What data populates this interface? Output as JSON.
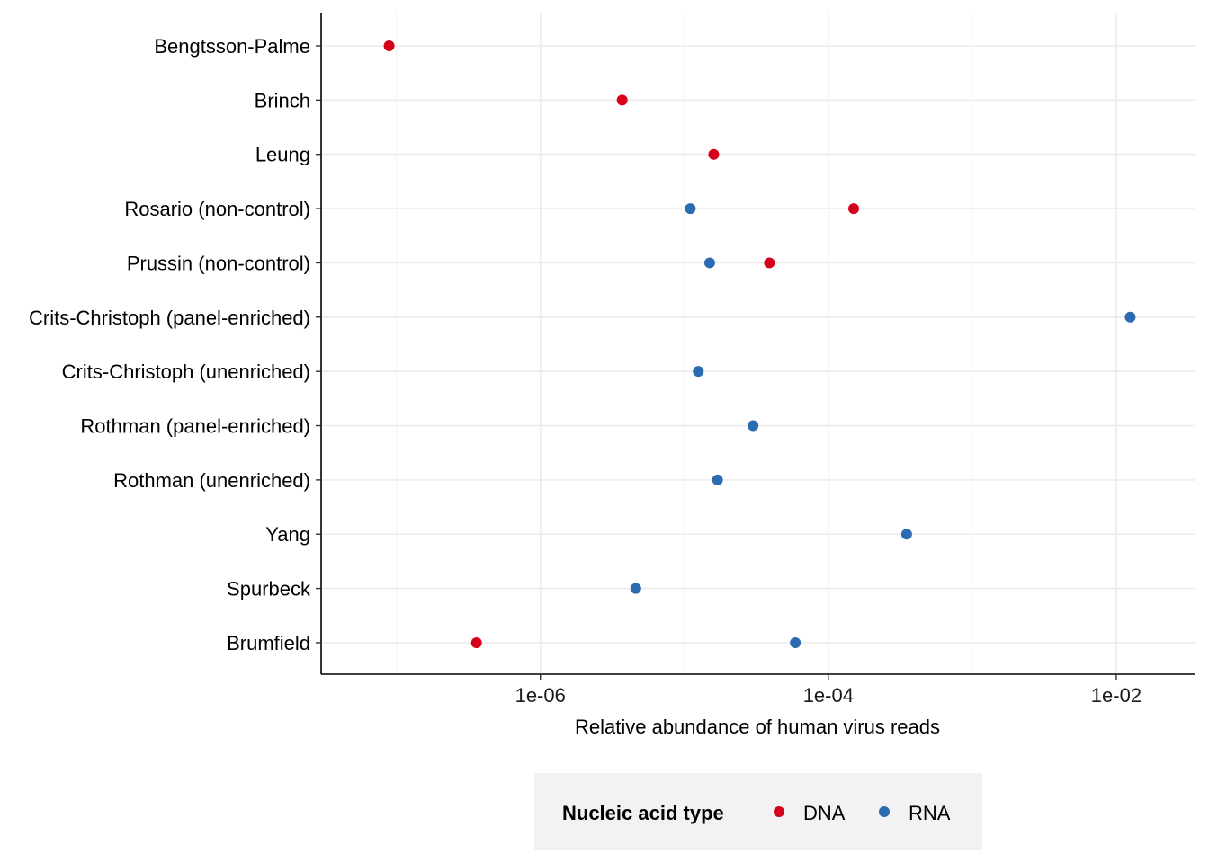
{
  "chart_data": {
    "type": "scatter",
    "xscale": "log10",
    "xlim": [
      3e-08,
      0.035
    ],
    "xlabel": "Relative abundance of human virus reads",
    "ylabel": "",
    "x_ticks": [
      {
        "value": 1e-06,
        "label": "1e-06"
      },
      {
        "value": 0.0001,
        "label": "1e-04"
      },
      {
        "value": 0.01,
        "label": "1e-02"
      }
    ],
    "x_minor_ticks": [
      1e-07,
      1e-05,
      0.001
    ],
    "grid": true,
    "categories": [
      "Bengtsson-Palme",
      "Brinch",
      "Leung",
      "Rosario (non-control)",
      "Prussin (non-control)",
      "Crits-Christoph (panel-enriched)",
      "Crits-Christoph (unenriched)",
      "Rothman (panel-enriched)",
      "Rothman (unenriched)",
      "Yang",
      "Spurbeck",
      "Brumfield"
    ],
    "series": [
      {
        "name": "DNA",
        "color": "#d7001a",
        "points": [
          {
            "category": "Bengtsson-Palme",
            "x": 8.9e-08
          },
          {
            "category": "Brinch",
            "x": 3.7e-06
          },
          {
            "category": "Leung",
            "x": 1.6e-05
          },
          {
            "category": "Rosario (non-control)",
            "x": 0.00015
          },
          {
            "category": "Prussin (non-control)",
            "x": 3.9e-05
          },
          {
            "category": "Brumfield",
            "x": 3.6e-07
          }
        ]
      },
      {
        "name": "RNA",
        "color": "#2b6cb0",
        "points": [
          {
            "category": "Rosario (non-control)",
            "x": 1.1e-05
          },
          {
            "category": "Prussin (non-control)",
            "x": 1.5e-05
          },
          {
            "category": "Crits-Christoph (panel-enriched)",
            "x": 0.0125
          },
          {
            "category": "Crits-Christoph (unenriched)",
            "x": 1.25e-05
          },
          {
            "category": "Rothman (panel-enriched)",
            "x": 3e-05
          },
          {
            "category": "Rothman (unenriched)",
            "x": 1.7e-05
          },
          {
            "category": "Yang",
            "x": 0.00035
          },
          {
            "category": "Spurbeck",
            "x": 4.6e-06
          },
          {
            "category": "Brumfield",
            "x": 5.9e-05
          }
        ]
      }
    ],
    "legend": {
      "position": "bottom",
      "title": "Nucleic acid type",
      "items": [
        "DNA",
        "RNA"
      ]
    }
  }
}
